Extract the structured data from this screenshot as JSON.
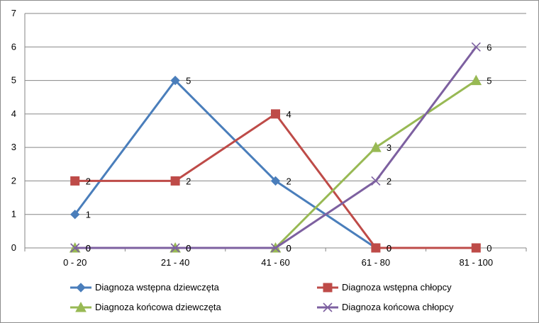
{
  "chart_data": {
    "type": "line",
    "categories": [
      "0 - 20",
      "21 - 40",
      "41 - 60",
      "61 - 80",
      "81 - 100"
    ],
    "ylim": [
      0,
      7
    ],
    "yticks": [
      0,
      1,
      2,
      3,
      4,
      5,
      6,
      7
    ],
    "grid": "horizontal",
    "legend_position": "bottom",
    "series": [
      {
        "name": "Diagnoza wstępna dziewczęta",
        "values": [
          1,
          5,
          2,
          0,
          null
        ],
        "color": "#4a7ebb",
        "marker": "diamond"
      },
      {
        "name": "Diagnoza wstępna chłopcy",
        "values": [
          2,
          2,
          4,
          0,
          0
        ],
        "color": "#be4b48",
        "marker": "square"
      },
      {
        "name": "Diagnoza końcowa dziewczęta",
        "values": [
          0,
          0,
          0,
          3,
          5
        ],
        "color": "#98b954",
        "marker": "triangle"
      },
      {
        "name": "Diagnoza końcowa chłopcy",
        "values": [
          0,
          0,
          0,
          2,
          6
        ],
        "color": "#7d60a0",
        "marker": "x"
      }
    ]
  }
}
